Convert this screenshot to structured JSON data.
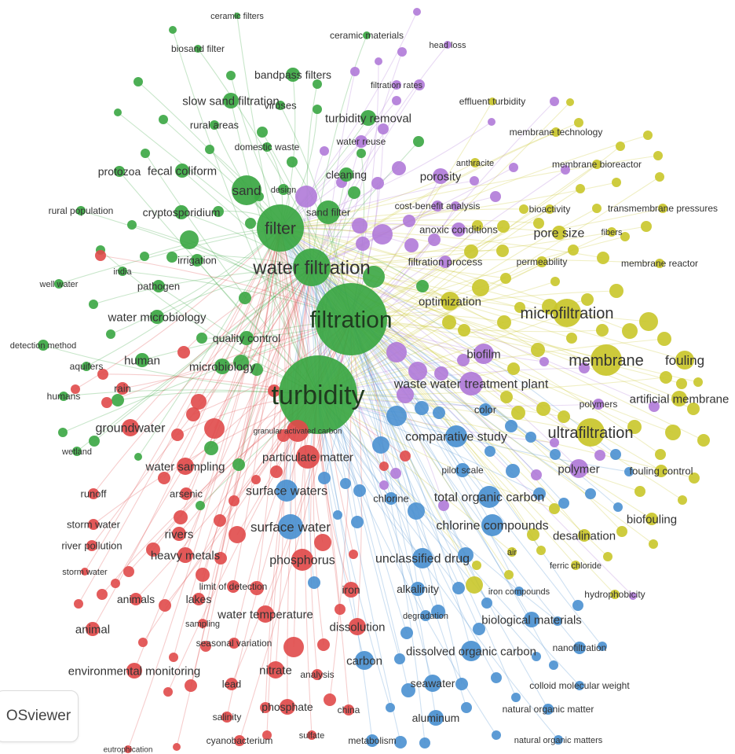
{
  "app": {
    "badge_label": "OSviewer"
  },
  "colors": {
    "green": "#3aa642",
    "red": "#e04a4a",
    "blue": "#4a90d0",
    "purple": "#b07ad8",
    "yellow": "#c9c62a",
    "label": "#333333"
  },
  "network": {
    "clusters": [
      {
        "id": "green",
        "items": [
          "ceramic filters",
          "biosand filter",
          "ceramic materials",
          "bandpass filters",
          "slow sand filtration",
          "viruses",
          "rural areas",
          "domestic waste",
          "protozoa",
          "fecal coliform",
          "sand",
          "design",
          "cleaning",
          "rural population",
          "cryptosporidium",
          "filter",
          "irrigation",
          "india",
          "water filtration",
          "well water",
          "pathogen",
          "filtration",
          "water microbiology",
          "quality control",
          "detection method",
          "human",
          "microbiology",
          "aquifers",
          "humans",
          "turbidity",
          "wetland",
          "turbidity removal",
          "sand filter"
        ]
      },
      {
        "id": "red",
        "items": [
          "rain",
          "groundwater",
          "granular activated carbon",
          "particulate matter",
          "water sampling",
          "runoff",
          "arsenic",
          "storm water",
          "rivers",
          "river pollution",
          "heavy metals",
          "phosphorus",
          "animals",
          "lakes",
          "limit of detection",
          "iron",
          "water temperature",
          "sampling",
          "animal",
          "seasonal variation",
          "dissolution",
          "environmental monitoring",
          "nitrate",
          "analysis",
          "lead",
          "phosphate",
          "china",
          "salinity",
          "cyanobacterium",
          "sulfate",
          "eutrophication"
        ]
      },
      {
        "id": "blue",
        "items": [
          "color",
          "comparative study",
          "surface waters",
          "pilot scale",
          "chlorine",
          "total organic carbon",
          "surface water",
          "chlorine compounds",
          "unclassified drug",
          "alkalinity",
          "degradation",
          "biological materials",
          "carbon",
          "dissolved organic carbon",
          "nanofiltration",
          "seawater",
          "colloid molecular weight",
          "aluminum",
          "natural organic matter",
          "metabolism",
          "natural organic matters",
          "iron compounds"
        ]
      },
      {
        "id": "purple",
        "items": [
          "head loss",
          "filtration rates",
          "water reuse",
          "porosity",
          "cost-benefit analysis",
          "anoxic conditions",
          "filtration process",
          "biofilm",
          "waste water treatment plant",
          "polymer",
          "polymers"
        ]
      },
      {
        "id": "yellow",
        "items": [
          "effluent turbidity",
          "membrane technology",
          "anthracite",
          "membrane bioreactor",
          "bioactivity",
          "transmembrane pressures",
          "pore size",
          "fibers",
          "permeability",
          "membrane reactor",
          "optimization",
          "microfiltration",
          "membrane",
          "fouling",
          "artificial membrane",
          "ultrafiltration",
          "fouling control",
          "biofouling",
          "desalination",
          "air",
          "ferric chloride",
          "hydrophobicity"
        ]
      }
    ]
  }
}
